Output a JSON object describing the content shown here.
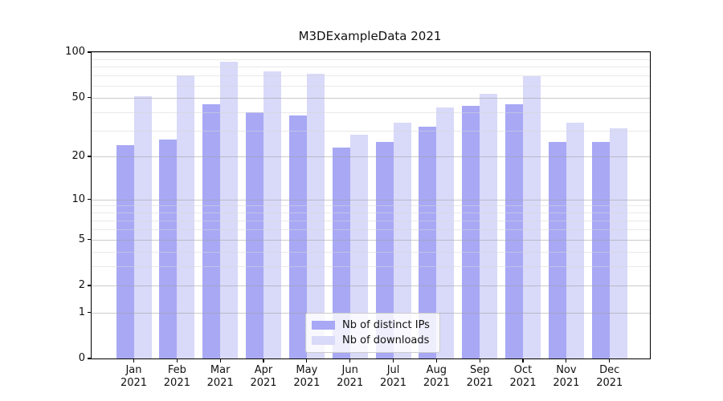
{
  "chart_data": {
    "type": "bar",
    "title": "M3DExampleData 2021",
    "categories": [
      "Jan",
      "Feb",
      "Mar",
      "Apr",
      "May",
      "Jun",
      "Jul",
      "Aug",
      "Sep",
      "Oct",
      "Nov",
      "Dec"
    ],
    "year_label": "2021",
    "series": [
      {
        "name": "Nb of distinct IPs",
        "color": "#a8a8f5",
        "values": [
          24,
          26,
          45,
          40,
          38,
          23,
          25,
          32,
          44,
          45,
          25,
          25
        ]
      },
      {
        "name": "Nb of downloads",
        "color": "#d9d9f9",
        "values": [
          51,
          70,
          86,
          75,
          72,
          28,
          34,
          43,
          53,
          69,
          34,
          31
        ]
      }
    ],
    "xlabel": "",
    "ylabel": "",
    "yscale": "log1p",
    "ylim": [
      0,
      100
    ],
    "y_major_ticks": [
      0,
      1,
      2,
      5,
      10,
      20,
      50,
      100
    ],
    "y_minor_ticks": [
      3,
      4,
      6,
      7,
      8,
      9,
      30,
      40,
      60,
      70,
      80,
      90
    ],
    "grid": true,
    "grid_over_bars": true,
    "legend_position": "lower center"
  },
  "colors": {
    "axis": "#000000",
    "major_grid": "#c9c9c9",
    "minor_grid": "#e7e7e7",
    "text": "#111111",
    "background": "#ffffff"
  }
}
